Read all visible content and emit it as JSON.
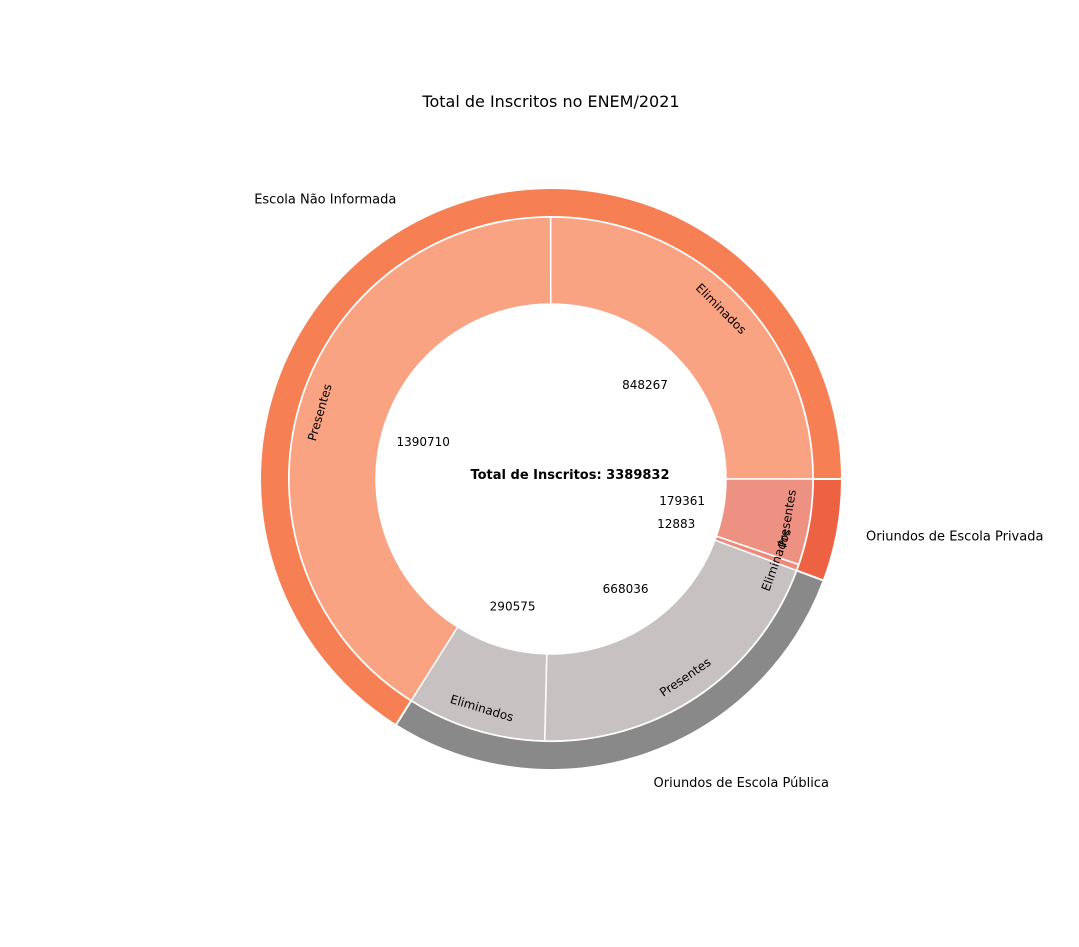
{
  "chart_data": {
    "type": "pie",
    "subtype": "nested-donut",
    "title": "Total de Inscritos no ENEM/2021",
    "center_label": "Total de Inscritos: 3389832",
    "outer_ring": [
      {
        "name": "Escola Não Informada",
        "value": 2238977,
        "color": "#f77f54"
      },
      {
        "name": "Oriundos de Escola Privada",
        "value": 192244,
        "color": "#ee6244"
      },
      {
        "name": "Oriundos de Escola Pública",
        "value": 958611,
        "color": "#898989"
      }
    ],
    "inner_ring": [
      {
        "label": "Eliminados",
        "value": 848267,
        "value_label": "848267",
        "group": "Escola Não Informada",
        "color": "#faa382"
      },
      {
        "label": "Presentes",
        "value": 1390710,
        "value_label": "1390710",
        "group": "Escola Não Informada",
        "color": "#faa382"
      },
      {
        "label": "Eliminados",
        "value": 290575,
        "value_label": "290575",
        "group": "Oriundos de Escola Pública",
        "color": "#c7c2c1"
      },
      {
        "label": "Presentes",
        "value": 668036,
        "value_label": "668036",
        "group": "Oriundos de Escola Pública",
        "color": "#c7c2c1"
      },
      {
        "label": "Eliminados",
        "value": 12883,
        "value_label": "12883",
        "group": "Oriundos de Escola Privada",
        "color": "#ed8a7c"
      },
      {
        "label": "Presentes",
        "value": 179361,
        "value_label": "179361",
        "group": "Oriundos de Escola Privada",
        "color": "#ed9282"
      }
    ],
    "direction": "counterclockwise",
    "start": "east",
    "legend": "none"
  }
}
